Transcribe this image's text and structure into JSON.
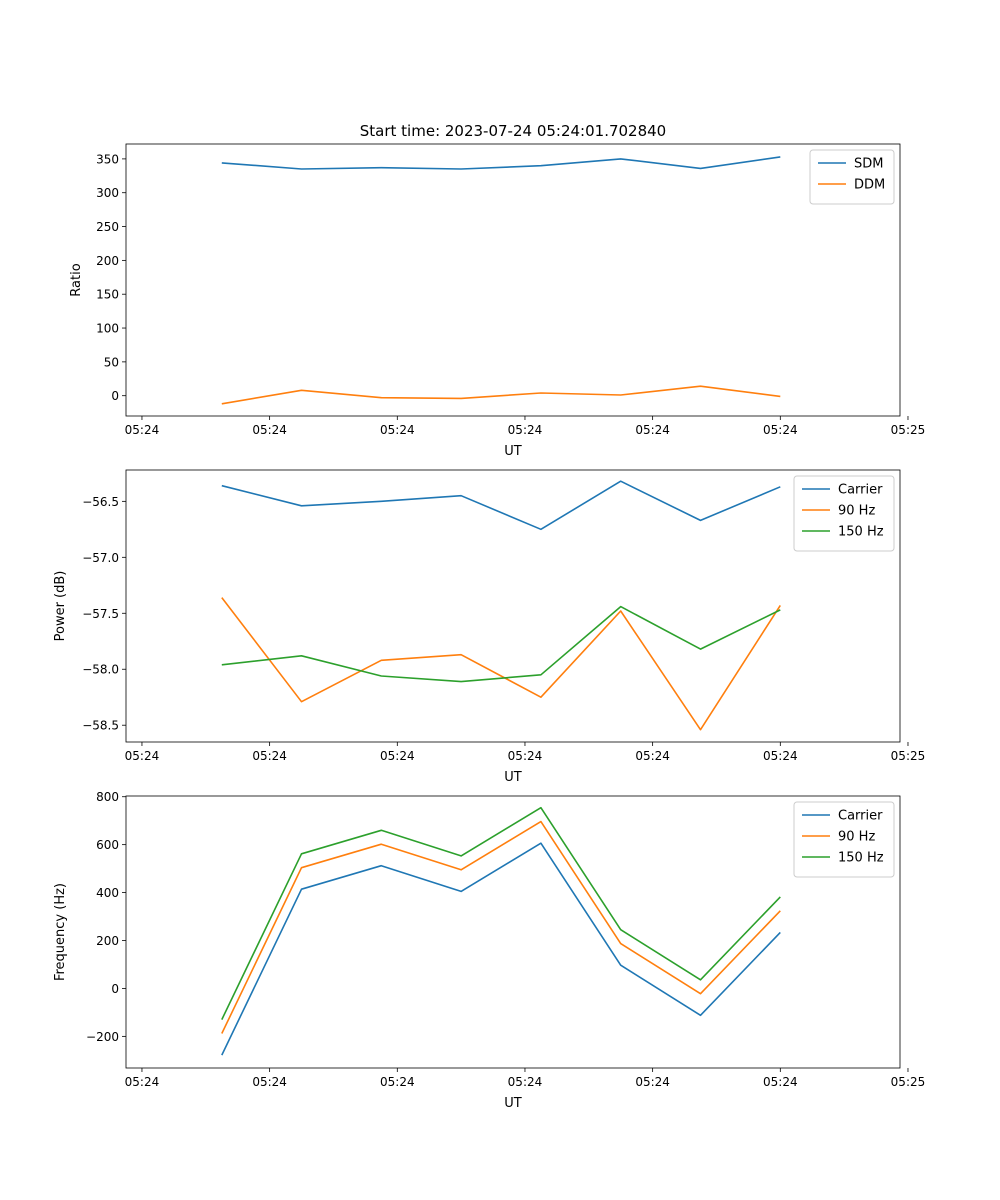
{
  "title": "Start time: 2023-07-24 05:24:01.702840",
  "chart_data": [
    {
      "type": "line",
      "title": "Start time: 2023-07-24 05:24:01.702840",
      "xlabel": "UT",
      "ylabel": "Ratio",
      "x": [
        0.5,
        1.0,
        1.5,
        2.0,
        2.5,
        3.0,
        3.5,
        4.0
      ],
      "xlim": [
        -0.1,
        4.75
      ],
      "xticks": [
        0,
        0.8,
        1.6,
        2.4,
        3.2,
        4.0,
        4.8
      ],
      "xtick_labels": [
        "05:24",
        "05:24",
        "05:24",
        "05:24",
        "05:24",
        "05:24",
        "05:25"
      ],
      "ylim": [
        -30,
        372
      ],
      "yticks": [
        0,
        50,
        100,
        150,
        200,
        250,
        300,
        350
      ],
      "ytick_labels": [
        "0",
        "50",
        "100",
        "150",
        "200",
        "250",
        "300",
        "350"
      ],
      "legend": "top-right",
      "series": [
        {
          "name": "SDM",
          "color": "#1f77b4",
          "values": [
            344,
            335,
            337,
            335,
            340,
            350,
            336,
            353
          ]
        },
        {
          "name": "DDM",
          "color": "#ff7f0e",
          "values": [
            -12,
            8,
            -3,
            -4,
            4,
            1,
            14,
            -1
          ]
        }
      ]
    },
    {
      "type": "line",
      "xlabel": "UT",
      "ylabel": "Power (dB)",
      "x": [
        0.5,
        1.0,
        1.5,
        2.0,
        2.5,
        3.0,
        3.5,
        4.0
      ],
      "xlim": [
        -0.1,
        4.75
      ],
      "xticks": [
        0,
        0.8,
        1.6,
        2.4,
        3.2,
        4.0,
        4.8
      ],
      "xtick_labels": [
        "05:24",
        "05:24",
        "05:24",
        "05:24",
        "05:24",
        "05:24",
        "05:25"
      ],
      "ylim": [
        -58.65,
        -56.22
      ],
      "yticks": [
        -58.5,
        -58.0,
        -57.5,
        -57.0,
        -56.5
      ],
      "ytick_labels": [
        "−58.5",
        "−58.0",
        "−57.5",
        "−57.0",
        "−56.5"
      ],
      "legend": "top-right",
      "series": [
        {
          "name": "Carrier",
          "color": "#1f77b4",
          "values": [
            -56.36,
            -56.54,
            -56.5,
            -56.45,
            -56.75,
            -56.32,
            -56.67,
            -56.37
          ]
        },
        {
          "name": "90 Hz",
          "color": "#ff7f0e",
          "values": [
            -57.36,
            -58.29,
            -57.92,
            -57.87,
            -58.25,
            -57.48,
            -58.54,
            -57.43
          ]
        },
        {
          "name": "150 Hz",
          "color": "#2ca02c",
          "values": [
            -57.96,
            -57.88,
            -58.06,
            -58.11,
            -58.05,
            -57.44,
            -57.82,
            -57.47
          ]
        }
      ]
    },
    {
      "type": "line",
      "xlabel": "UT",
      "ylabel": "Frequency (Hz)",
      "x": [
        0.5,
        1.0,
        1.5,
        2.0,
        2.5,
        3.0,
        3.5,
        4.0
      ],
      "xlim": [
        -0.1,
        4.75
      ],
      "xticks": [
        0,
        0.8,
        1.6,
        2.4,
        3.2,
        4.0,
        4.8
      ],
      "xtick_labels": [
        "05:24",
        "05:24",
        "05:24",
        "05:24",
        "05:24",
        "05:24",
        "05:25"
      ],
      "ylim": [
        -332,
        803
      ],
      "yticks": [
        -200,
        0,
        200,
        400,
        600,
        800
      ],
      "ytick_labels": [
        "−200",
        "0",
        "200",
        "400",
        "600",
        "800"
      ],
      "legend": "top-right",
      "series": [
        {
          "name": "Carrier",
          "color": "#1f77b4",
          "values": [
            -278,
            414,
            512,
            405,
            606,
            97,
            -112,
            234
          ]
        },
        {
          "name": "90 Hz",
          "color": "#ff7f0e",
          "values": [
            -188,
            504,
            602,
            495,
            696,
            187,
            -22,
            324
          ]
        },
        {
          "name": "150 Hz",
          "color": "#2ca02c",
          "values": [
            -130,
            562,
            660,
            553,
            754,
            245,
            36,
            382
          ]
        }
      ]
    }
  ]
}
